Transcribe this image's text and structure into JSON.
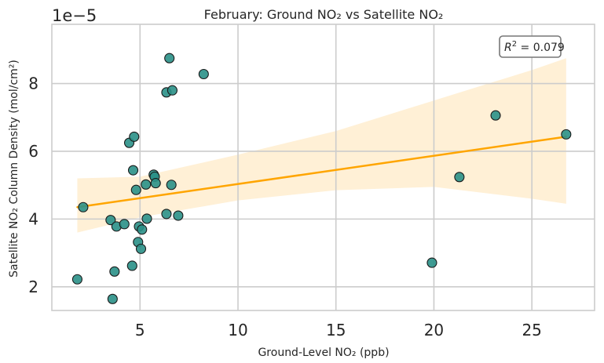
{
  "chart_data": {
    "type": "scatter",
    "title": "February: Ground NO₂ vs Satellite NO₂",
    "xlabel": "Ground-Level NO₂ (ppb)",
    "ylabel": "Satellite NO₂ Column Density (mol/cm²)",
    "y_offset_label": "1e−5",
    "annotation": {
      "r2_prefix": "R",
      "r2_exp": "2",
      "r2_value": " = 0.079"
    },
    "xlim": [
      0.5,
      28.2
    ],
    "ylim": [
      1.3,
      9.75
    ],
    "y_scale_factor": 1e-05,
    "xticks": [
      5,
      10,
      15,
      20,
      25
    ],
    "xtick_labels": [
      "5",
      "10",
      "15",
      "20",
      "25"
    ],
    "yticks": [
      2,
      4,
      6,
      8
    ],
    "ytick_labels": [
      "2",
      "4",
      "6",
      "8"
    ],
    "grid": true,
    "colors": {
      "points": "#2a9087",
      "edge": "#1a1a1a",
      "line": "#ffa500",
      "band": "#fff0d6",
      "grid": "#cccccc"
    },
    "points": [
      {
        "x": 1.8,
        "y": 2.22
      },
      {
        "x": 2.1,
        "y": 4.35
      },
      {
        "x": 3.5,
        "y": 3.97
      },
      {
        "x": 3.6,
        "y": 1.64
      },
      {
        "x": 3.7,
        "y": 2.45
      },
      {
        "x": 3.8,
        "y": 3.78
      },
      {
        "x": 4.2,
        "y": 3.85
      },
      {
        "x": 4.45,
        "y": 6.25
      },
      {
        "x": 4.6,
        "y": 2.62
      },
      {
        "x": 4.65,
        "y": 5.44
      },
      {
        "x": 4.7,
        "y": 6.43
      },
      {
        "x": 4.8,
        "y": 4.86
      },
      {
        "x": 4.9,
        "y": 3.32
      },
      {
        "x": 4.95,
        "y": 3.78
      },
      {
        "x": 5.05,
        "y": 3.12
      },
      {
        "x": 5.1,
        "y": 3.69
      },
      {
        "x": 5.3,
        "y": 5.02
      },
      {
        "x": 5.35,
        "y": 4.01
      },
      {
        "x": 5.7,
        "y": 5.31
      },
      {
        "x": 5.75,
        "y": 5.25
      },
      {
        "x": 5.8,
        "y": 5.06
      },
      {
        "x": 6.35,
        "y": 7.74
      },
      {
        "x": 6.35,
        "y": 4.15
      },
      {
        "x": 6.5,
        "y": 8.75
      },
      {
        "x": 6.6,
        "y": 5.01
      },
      {
        "x": 6.65,
        "y": 7.8
      },
      {
        "x": 6.95,
        "y": 4.1
      },
      {
        "x": 8.25,
        "y": 8.28
      },
      {
        "x": 19.9,
        "y": 2.71
      },
      {
        "x": 21.3,
        "y": 5.24
      },
      {
        "x": 23.15,
        "y": 7.06
      },
      {
        "x": 26.75,
        "y": 6.5
      }
    ],
    "regression": {
      "x": [
        1.8,
        26.75
      ],
      "y": [
        4.35,
        6.43
      ],
      "ci_upper": [
        5.2,
        8.75
      ],
      "ci_lower": [
        3.6,
        4.45
      ],
      "ci_band_x": [
        1.8,
        5,
        10,
        15,
        20,
        25,
        26.75
      ],
      "ci_band_upper": [
        5.2,
        5.25,
        5.9,
        6.6,
        7.5,
        8.4,
        8.75
      ],
      "ci_band_lower": [
        3.6,
        4.05,
        4.55,
        4.85,
        4.95,
        4.6,
        4.45
      ]
    }
  }
}
